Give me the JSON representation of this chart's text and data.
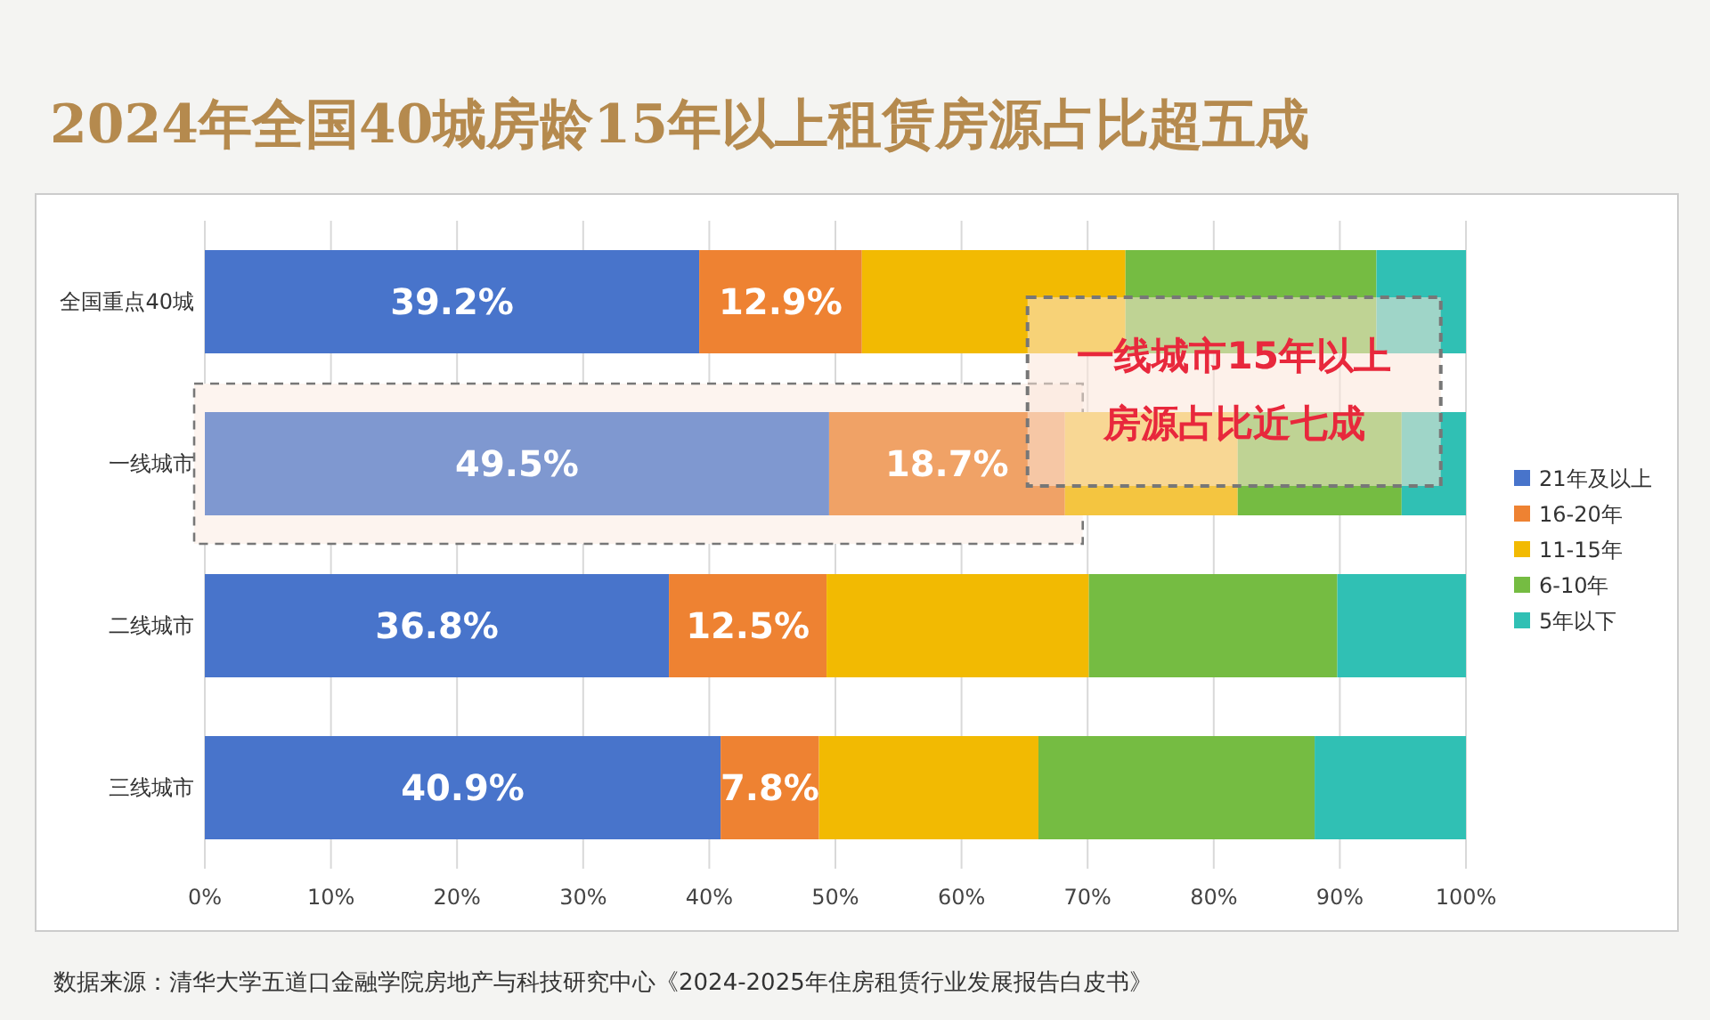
{
  "chart_data": {
    "type": "bar",
    "orientation": "horizontal",
    "stacked": true,
    "title": "2024年全国40城房龄15年以上租赁房源占比超五成",
    "categories": [
      "全国重点40城",
      "一线城市",
      "二线城市",
      "三线城市"
    ],
    "series": [
      {
        "name": "21年及以上",
        "color": "#4874cb",
        "colors": [
          "#4874cb",
          "#7f98d0",
          "#4874cb",
          "#4874cb"
        ],
        "values": [
          39.2,
          49.5,
          36.8,
          40.9
        ],
        "value_labels": [
          "39.2%",
          "49.5%",
          "36.8%",
          "40.9%"
        ]
      },
      {
        "name": "16-20年",
        "color": "#ee8232",
        "colors": [
          "#ee8232",
          "#f0a266",
          "#ee8232",
          "#ee8232"
        ],
        "values": [
          12.9,
          18.7,
          12.5,
          7.8
        ],
        "value_labels": [
          "12.9%",
          "18.7%",
          "12.5%",
          "7.8%"
        ]
      },
      {
        "name": "11-15年",
        "color": "#f2ba02",
        "colors": [
          "#f2ba02",
          "#f4c540",
          "#f2ba02",
          "#f2ba02"
        ],
        "values": [
          20.9,
          13.7,
          20.8,
          17.4
        ]
      },
      {
        "name": "6-10年",
        "color": "#75bc42",
        "colors": [
          "#75bc42",
          "#75bc42",
          "#75bc42",
          "#75bc42"
        ],
        "values": [
          19.9,
          13.0,
          19.7,
          21.9
        ]
      },
      {
        "name": "5年以下",
        "color": "#30c0b4",
        "colors": [
          "#30c0b4",
          "#30c0b4",
          "#30c0b4",
          "#30c0b4"
        ],
        "values": [
          7.1,
          5.1,
          10.2,
          12.0
        ]
      }
    ],
    "xlim": [
      0,
      100
    ],
    "xticks": [
      {
        "value": 0,
        "label": "0%"
      },
      {
        "value": 10,
        "label": "10%"
      },
      {
        "value": 20,
        "label": "20%"
      },
      {
        "value": 30,
        "label": "30%"
      },
      {
        "value": 40,
        "label": "40%"
      },
      {
        "value": 50,
        "label": "50%"
      },
      {
        "value": 60,
        "label": "60%"
      },
      {
        "value": 70,
        "label": "70%"
      },
      {
        "value": 80,
        "label": "80%"
      },
      {
        "value": 90,
        "label": "90%"
      },
      {
        "value": 100,
        "label": "100%"
      }
    ],
    "grid": "x",
    "bands": [
      {
        "axis": "y",
        "from": "一线城市",
        "to": "一线城市",
        "color": "#fdf4ef"
      }
    ],
    "legend": "right",
    "annotations": [
      {
        "text": "一线城市15年以上房源占比近七成",
        "x": 68.2,
        "y": "一线城市"
      },
      "数据来源：清华大学五道口金融学院房地产与科技研究中心《2024-2025年住房租赁行业发展报告白皮书》"
    ]
  }
}
